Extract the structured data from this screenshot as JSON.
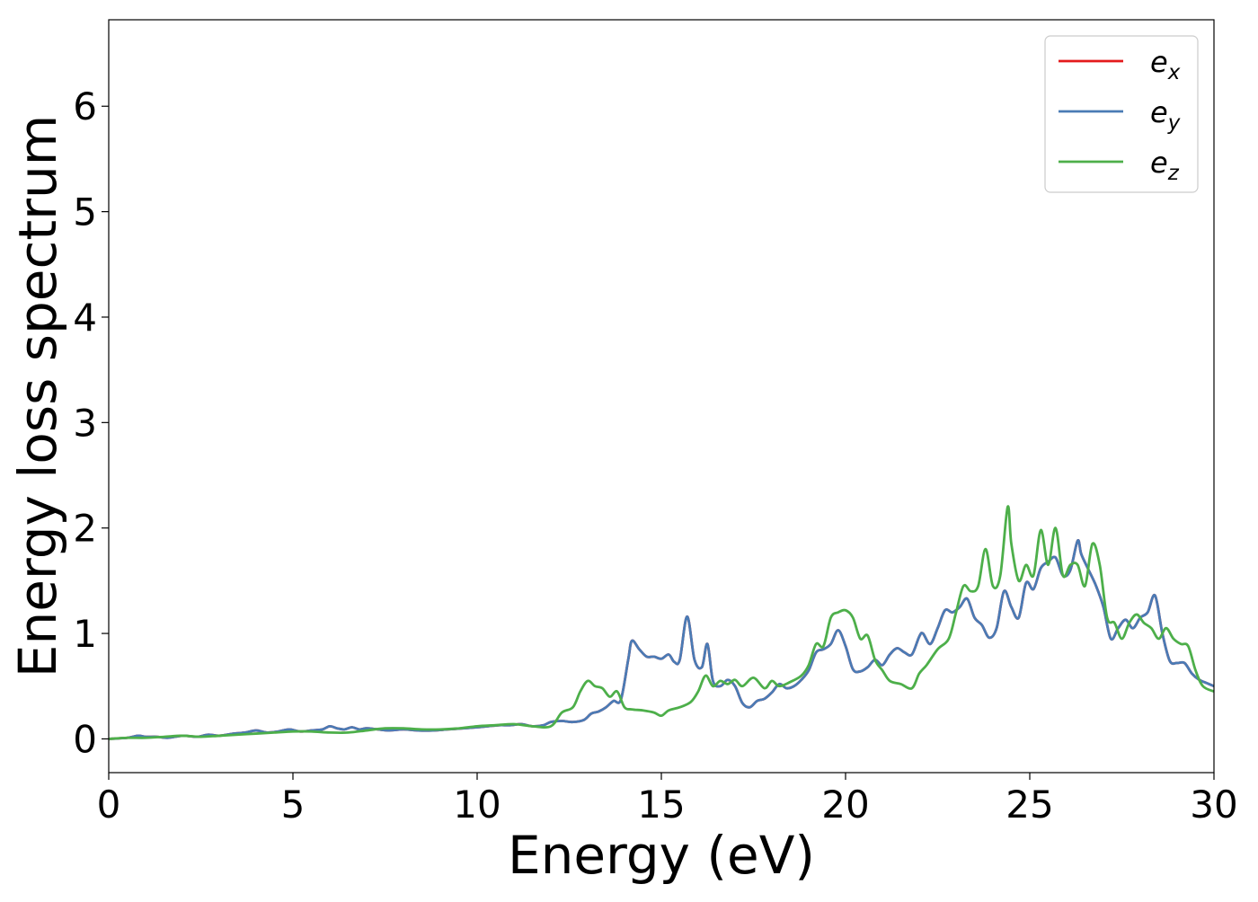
{
  "chart_data": {
    "type": "line",
    "xlabel": "Energy (eV)",
    "ylabel": "Energy loss spectrum",
    "xlim": [
      0,
      30
    ],
    "ylim": [
      -0.32,
      6.82
    ],
    "xticks": [
      0,
      5,
      10,
      15,
      20,
      25,
      30
    ],
    "yticks": [
      0,
      1,
      2,
      3,
      4,
      5,
      6
    ],
    "grid": false,
    "legend_position": "top-right",
    "series": [
      {
        "name": "e_x",
        "label_base": "e",
        "label_sub": "x",
        "color": "#e41a1c",
        "x": [
          0,
          0.5,
          0.8,
          1.0,
          1.3,
          1.6,
          2.0,
          2.4,
          2.7,
          3.0,
          3.4,
          3.7,
          4.0,
          4.3,
          4.6,
          4.9,
          5.2,
          5.5,
          5.8,
          6.0,
          6.2,
          6.4,
          6.6,
          6.8,
          7.0,
          7.3,
          7.6,
          8.0,
          8.4,
          8.8,
          9.2,
          9.6,
          10.0,
          10.3,
          10.6,
          10.9,
          11.2,
          11.5,
          11.8,
          12.0,
          12.3,
          12.6,
          12.9,
          13.1,
          13.3,
          13.5,
          13.7,
          13.9,
          14.1,
          14.2,
          14.4,
          14.6,
          14.8,
          15.0,
          15.2,
          15.35,
          15.5,
          15.7,
          15.9,
          16.1,
          16.25,
          16.4,
          16.6,
          16.8,
          17.0,
          17.2,
          17.4,
          17.6,
          17.8,
          18.0,
          18.2,
          18.4,
          18.6,
          18.8,
          19.0,
          19.2,
          19.4,
          19.6,
          19.8,
          20.0,
          20.2,
          20.4,
          20.6,
          20.8,
          21.0,
          21.2,
          21.4,
          21.6,
          21.8,
          22.0,
          22.1,
          22.3,
          22.5,
          22.7,
          22.9,
          23.1,
          23.3,
          23.5,
          23.7,
          23.9,
          24.1,
          24.3,
          24.5,
          24.7,
          24.9,
          25.1,
          25.3,
          25.5,
          25.7,
          25.9,
          26.1,
          26.3,
          26.4,
          26.6,
          26.8,
          27.0,
          27.2,
          27.4,
          27.6,
          27.8,
          28.0,
          28.2,
          28.4,
          28.6,
          28.8,
          29.0,
          29.2,
          29.4,
          29.6,
          29.8,
          30.0
        ],
        "values": [
          0,
          0.01,
          0.03,
          0.02,
          0.02,
          0.01,
          0.03,
          0.02,
          0.04,
          0.03,
          0.05,
          0.06,
          0.08,
          0.06,
          0.07,
          0.09,
          0.07,
          0.08,
          0.09,
          0.12,
          0.1,
          0.09,
          0.11,
          0.09,
          0.1,
          0.09,
          0.08,
          0.09,
          0.08,
          0.08,
          0.09,
          0.1,
          0.11,
          0.12,
          0.13,
          0.13,
          0.14,
          0.12,
          0.13,
          0.16,
          0.17,
          0.16,
          0.18,
          0.24,
          0.26,
          0.3,
          0.36,
          0.37,
          0.75,
          0.93,
          0.85,
          0.78,
          0.78,
          0.76,
          0.8,
          0.73,
          0.75,
          1.16,
          0.75,
          0.68,
          0.9,
          0.55,
          0.5,
          0.56,
          0.5,
          0.34,
          0.3,
          0.36,
          0.38,
          0.44,
          0.52,
          0.48,
          0.5,
          0.56,
          0.65,
          0.82,
          0.85,
          0.9,
          1.03,
          0.88,
          0.66,
          0.64,
          0.68,
          0.75,
          0.7,
          0.8,
          0.86,
          0.82,
          0.8,
          0.97,
          1.0,
          0.9,
          1.05,
          1.22,
          1.2,
          1.25,
          1.33,
          1.15,
          1.08,
          0.96,
          1.05,
          1.4,
          1.25,
          1.15,
          1.48,
          1.42,
          1.62,
          1.68,
          1.72,
          1.55,
          1.6,
          1.88,
          1.75,
          1.6,
          1.45,
          1.25,
          0.95,
          1.05,
          1.13,
          1.05,
          1.15,
          1.2,
          1.36,
          1.0,
          0.74,
          0.72,
          0.72,
          0.62,
          0.56,
          0.53,
          0.5
        ]
      },
      {
        "name": "e_y",
        "label_base": "e",
        "label_sub": "y",
        "color": "#4a7bb5",
        "x": [
          0,
          0.5,
          0.8,
          1.0,
          1.3,
          1.6,
          2.0,
          2.4,
          2.7,
          3.0,
          3.4,
          3.7,
          4.0,
          4.3,
          4.6,
          4.9,
          5.2,
          5.5,
          5.8,
          6.0,
          6.2,
          6.4,
          6.6,
          6.8,
          7.0,
          7.3,
          7.6,
          8.0,
          8.4,
          8.8,
          9.2,
          9.6,
          10.0,
          10.3,
          10.6,
          10.9,
          11.2,
          11.5,
          11.8,
          12.0,
          12.3,
          12.6,
          12.9,
          13.1,
          13.3,
          13.5,
          13.7,
          13.9,
          14.1,
          14.2,
          14.4,
          14.6,
          14.8,
          15.0,
          15.2,
          15.35,
          15.5,
          15.7,
          15.9,
          16.1,
          16.25,
          16.4,
          16.6,
          16.8,
          17.0,
          17.2,
          17.4,
          17.6,
          17.8,
          18.0,
          18.2,
          18.4,
          18.6,
          18.8,
          19.0,
          19.2,
          19.4,
          19.6,
          19.8,
          20.0,
          20.2,
          20.4,
          20.6,
          20.8,
          21.0,
          21.2,
          21.4,
          21.6,
          21.8,
          22.0,
          22.1,
          22.3,
          22.5,
          22.7,
          22.9,
          23.1,
          23.3,
          23.5,
          23.7,
          23.9,
          24.1,
          24.3,
          24.5,
          24.7,
          24.9,
          25.1,
          25.3,
          25.5,
          25.7,
          25.9,
          26.1,
          26.3,
          26.4,
          26.6,
          26.8,
          27.0,
          27.2,
          27.4,
          27.6,
          27.8,
          28.0,
          28.2,
          28.4,
          28.6,
          28.8,
          29.0,
          29.2,
          29.4,
          29.6,
          29.8,
          30.0
        ],
        "values": [
          0,
          0.01,
          0.03,
          0.02,
          0.02,
          0.01,
          0.03,
          0.02,
          0.04,
          0.03,
          0.05,
          0.06,
          0.08,
          0.06,
          0.07,
          0.09,
          0.07,
          0.08,
          0.09,
          0.12,
          0.1,
          0.09,
          0.11,
          0.09,
          0.1,
          0.09,
          0.08,
          0.09,
          0.08,
          0.08,
          0.09,
          0.1,
          0.11,
          0.12,
          0.13,
          0.13,
          0.14,
          0.12,
          0.13,
          0.16,
          0.17,
          0.16,
          0.18,
          0.24,
          0.26,
          0.3,
          0.36,
          0.37,
          0.75,
          0.93,
          0.85,
          0.78,
          0.78,
          0.76,
          0.8,
          0.73,
          0.75,
          1.16,
          0.75,
          0.68,
          0.9,
          0.55,
          0.5,
          0.56,
          0.5,
          0.34,
          0.3,
          0.36,
          0.38,
          0.44,
          0.52,
          0.48,
          0.5,
          0.56,
          0.65,
          0.82,
          0.85,
          0.9,
          1.03,
          0.88,
          0.66,
          0.64,
          0.68,
          0.75,
          0.7,
          0.8,
          0.86,
          0.82,
          0.8,
          0.97,
          1.0,
          0.9,
          1.05,
          1.22,
          1.2,
          1.25,
          1.33,
          1.15,
          1.08,
          0.96,
          1.05,
          1.4,
          1.25,
          1.15,
          1.48,
          1.42,
          1.62,
          1.68,
          1.72,
          1.55,
          1.6,
          1.88,
          1.75,
          1.6,
          1.45,
          1.25,
          0.95,
          1.05,
          1.13,
          1.05,
          1.15,
          1.2,
          1.36,
          1.0,
          0.74,
          0.72,
          0.72,
          0.62,
          0.56,
          0.53,
          0.5
        ]
      },
      {
        "name": "e_z",
        "label_base": "e",
        "label_sub": "z",
        "color": "#4daf4a",
        "x": [
          0,
          0.5,
          1.0,
          1.5,
          2.0,
          2.5,
          3.0,
          3.5,
          4.0,
          4.5,
          5.0,
          5.5,
          6.0,
          6.5,
          7.0,
          7.5,
          8.0,
          8.5,
          9.0,
          9.5,
          10.0,
          10.5,
          11.0,
          11.5,
          12.0,
          12.3,
          12.6,
          12.8,
          13.0,
          13.2,
          13.4,
          13.6,
          13.8,
          14.0,
          14.2,
          14.5,
          14.8,
          15.0,
          15.2,
          15.5,
          15.8,
          16.0,
          16.2,
          16.4,
          16.6,
          16.8,
          17.0,
          17.2,
          17.5,
          17.8,
          18.0,
          18.2,
          18.5,
          18.8,
          19.0,
          19.2,
          19.4,
          19.6,
          19.8,
          20.0,
          20.2,
          20.4,
          20.6,
          20.8,
          21.0,
          21.2,
          21.5,
          21.8,
          22.0,
          22.2,
          22.5,
          22.8,
          23.0,
          23.2,
          23.4,
          23.6,
          23.8,
          24.0,
          24.2,
          24.4,
          24.5,
          24.7,
          24.9,
          25.1,
          25.3,
          25.5,
          25.7,
          25.9,
          26.1,
          26.3,
          26.5,
          26.7,
          26.9,
          27.1,
          27.3,
          27.5,
          27.7,
          27.9,
          28.1,
          28.3,
          28.5,
          28.7,
          28.9,
          29.1,
          29.3,
          29.5,
          29.7,
          30.0
        ],
        "values": [
          0,
          0.01,
          0.01,
          0.02,
          0.03,
          0.02,
          0.03,
          0.04,
          0.05,
          0.06,
          0.07,
          0.07,
          0.06,
          0.06,
          0.08,
          0.1,
          0.1,
          0.09,
          0.09,
          0.1,
          0.12,
          0.13,
          0.14,
          0.12,
          0.12,
          0.25,
          0.3,
          0.45,
          0.55,
          0.5,
          0.48,
          0.4,
          0.45,
          0.3,
          0.28,
          0.27,
          0.25,
          0.22,
          0.27,
          0.3,
          0.35,
          0.45,
          0.6,
          0.5,
          0.55,
          0.52,
          0.56,
          0.5,
          0.58,
          0.48,
          0.55,
          0.5,
          0.54,
          0.6,
          0.7,
          0.9,
          0.88,
          1.15,
          1.2,
          1.22,
          1.15,
          0.95,
          0.98,
          0.75,
          0.65,
          0.55,
          0.52,
          0.48,
          0.62,
          0.7,
          0.85,
          0.95,
          1.2,
          1.45,
          1.4,
          1.45,
          1.8,
          1.45,
          1.55,
          2.2,
          1.85,
          1.5,
          1.65,
          1.55,
          1.98,
          1.65,
          2.0,
          1.55,
          1.65,
          1.65,
          1.45,
          1.85,
          1.65,
          1.15,
          1.1,
          0.95,
          1.1,
          1.18,
          1.1,
          1.05,
          0.95,
          1.05,
          0.95,
          0.9,
          0.88,
          0.65,
          0.5,
          0.45
        ]
      }
    ]
  }
}
